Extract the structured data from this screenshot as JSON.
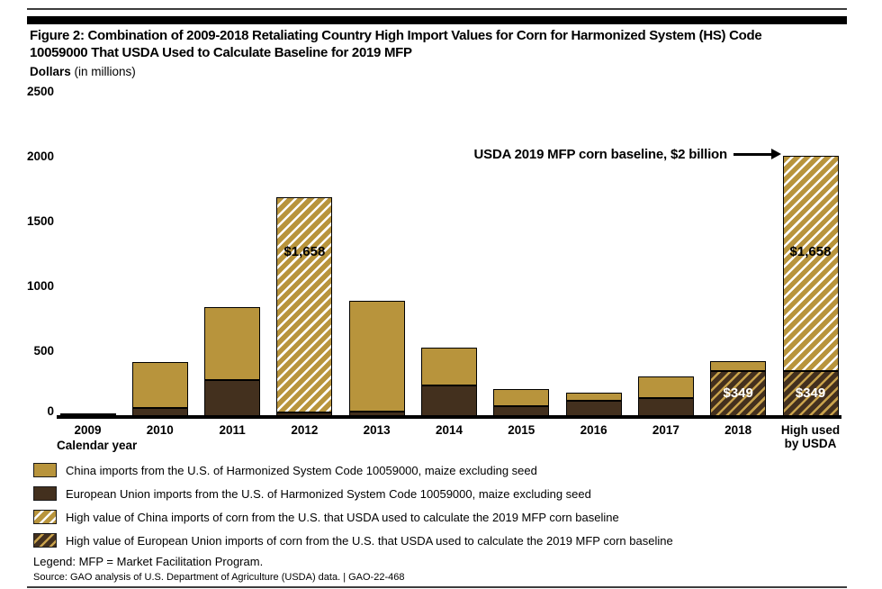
{
  "page": {
    "title_line1": "Figure 2: Combination of 2009-2018 Retaliating Country High Import Values for Corn for Harmonized System (HS) Code",
    "title_line2": "10059000 That USDA Used to Calculate Baseline for 2019 MFP",
    "unit_label_bold": "Dollars",
    "unit_label_rest": " (in millions)",
    "legend_note": "Legend: MFP = Market Facilitation Program.",
    "source_line": "Source: GAO analysis of U.S. Department of Agriculture (USDA) data.  |  GAO-22-468"
  },
  "annotation": {
    "label": "USDA 2019 MFP corn baseline, $2 billion"
  },
  "colors": {
    "china_gold": "#B8943C",
    "eu_brown": "#43301E",
    "gold_hatch_stripe": "#FFFFFF",
    "brown_hatch_stripe": "#C8A24C",
    "bar_border": "#000000"
  },
  "chart_data": {
    "type": "bar",
    "stacked": true,
    "title": "Combination of 2009-2018 Retaliating Country High Import Values for Corn for HS Code 10059000 That USDA Used to Calculate Baseline for 2019 MFP",
    "ylabel": "Dollars (in millions)",
    "xlabel": "Calendar year",
    "ylim": [
      0,
      2500
    ],
    "yticks": [
      0,
      500,
      1000,
      1500,
      2000,
      2500
    ],
    "grid": false,
    "legend_position": "bottom",
    "categories": [
      "2009",
      "2010",
      "2011",
      "2012",
      "2013",
      "2014",
      "2015",
      "2016",
      "2017",
      "2018",
      "High used\nby USDA"
    ],
    "series": [
      {
        "name": "China imports of HS 10059000 from the U.S.",
        "values": [
          5,
          355,
          565,
          1658,
          855,
          295,
          130,
          60,
          170,
          75,
          1658
        ]
      },
      {
        "name": "European Union imports of HS 10059000 from the U.S.",
        "values": [
          15,
          65,
          275,
          25,
          35,
          235,
          75,
          120,
          140,
          349,
          349
        ]
      }
    ],
    "bars": [
      {
        "label": "2009",
        "china": 5,
        "eu": 15
      },
      {
        "label": "2010",
        "china": 355,
        "eu": 65
      },
      {
        "label": "2011",
        "china": 565,
        "eu": 275
      },
      {
        "label": "2012",
        "china": 1658,
        "eu": 25,
        "china_hatched": true,
        "china_label": "$1,658"
      },
      {
        "label": "2013",
        "china": 855,
        "eu": 35
      },
      {
        "label": "2014",
        "china": 295,
        "eu": 235
      },
      {
        "label": "2015",
        "china": 130,
        "eu": 75
      },
      {
        "label": "2016",
        "china": 60,
        "eu": 120
      },
      {
        "label": "2017",
        "china": 170,
        "eu": 140
      },
      {
        "label": "2018",
        "china": 75,
        "eu": 349,
        "eu_hatched": true,
        "eu_label": "$349"
      },
      {
        "label": "High used\nby USDA",
        "china": 1658,
        "eu": 349,
        "china_hatched": true,
        "eu_hatched": true,
        "china_label": "$1,658",
        "eu_label": "$349"
      }
    ],
    "annotations": [
      "USDA 2019 MFP corn baseline, $2 billion"
    ]
  },
  "legend": {
    "items": [
      {
        "swatch": "gold",
        "label": "China imports from the U.S. of Harmonized System Code 10059000, maize excluding seed"
      },
      {
        "swatch": "brown",
        "label": "European Union imports from the U.S. of Harmonized System Code 10059000, maize excluding seed"
      },
      {
        "swatch": "gold-hatch",
        "label": "High value of China imports of corn from the U.S. that USDA used to calculate the 2019 MFP corn baseline"
      },
      {
        "swatch": "brown-hatch",
        "label": "High value of European Union imports of corn from the U.S. that USDA used to calculate the 2019 MFP corn baseline"
      }
    ]
  }
}
